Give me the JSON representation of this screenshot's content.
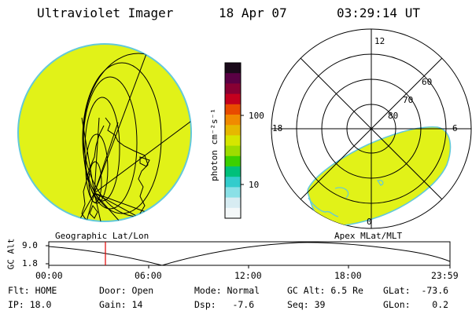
{
  "header": {
    "instrument": "Ultraviolet Imager",
    "date": "18 Apr 07",
    "time": "03:29:14 UT"
  },
  "colorbar": {
    "unit_label": "photon cm⁻²s⁻¹",
    "tick_labels": [
      "100",
      "10"
    ],
    "colors": [
      "#1a0a1a",
      "#5a0044",
      "#880033",
      "#c4001e",
      "#e84b00",
      "#f08a00",
      "#e6b800",
      "#d6e600",
      "#9edc00",
      "#3cd000",
      "#00c07a",
      "#33cccc",
      "#8ae0e6",
      "#d7ecf2",
      "#f4f8f9"
    ]
  },
  "geo_panel": {
    "label": "Geographic Lat/Lon",
    "fill_color": "#e1f218"
  },
  "apex_panel": {
    "label": "Apex MLat/MLT",
    "mlt_labels": {
      "top": "12",
      "left": "18",
      "right": "6",
      "bottom": "0"
    },
    "lat_labels": [
      "60",
      "70",
      "80"
    ],
    "fill_color": "#e1f218"
  },
  "altitude_plot": {
    "ylabel": "GC Alt",
    "yticks": [
      "9.0",
      "1.8"
    ],
    "xticks": [
      "00:00",
      "06:00",
      "12:00",
      "18:00",
      "23:59"
    ],
    "current_time_color": "#e00000"
  },
  "info": {
    "flt": "Flt: HOME",
    "ip": "IP: 18.0",
    "door": "Door: Open",
    "gain": "Gain: 14",
    "mode": "Mode: Normal",
    "dsp": "Dsp:   -7.6",
    "gcalt": "GC Alt: 6.5 Re",
    "seq": "Seq: 39",
    "glat": "GLat:  -73.6",
    "glon": "GLon:    0.2"
  }
}
